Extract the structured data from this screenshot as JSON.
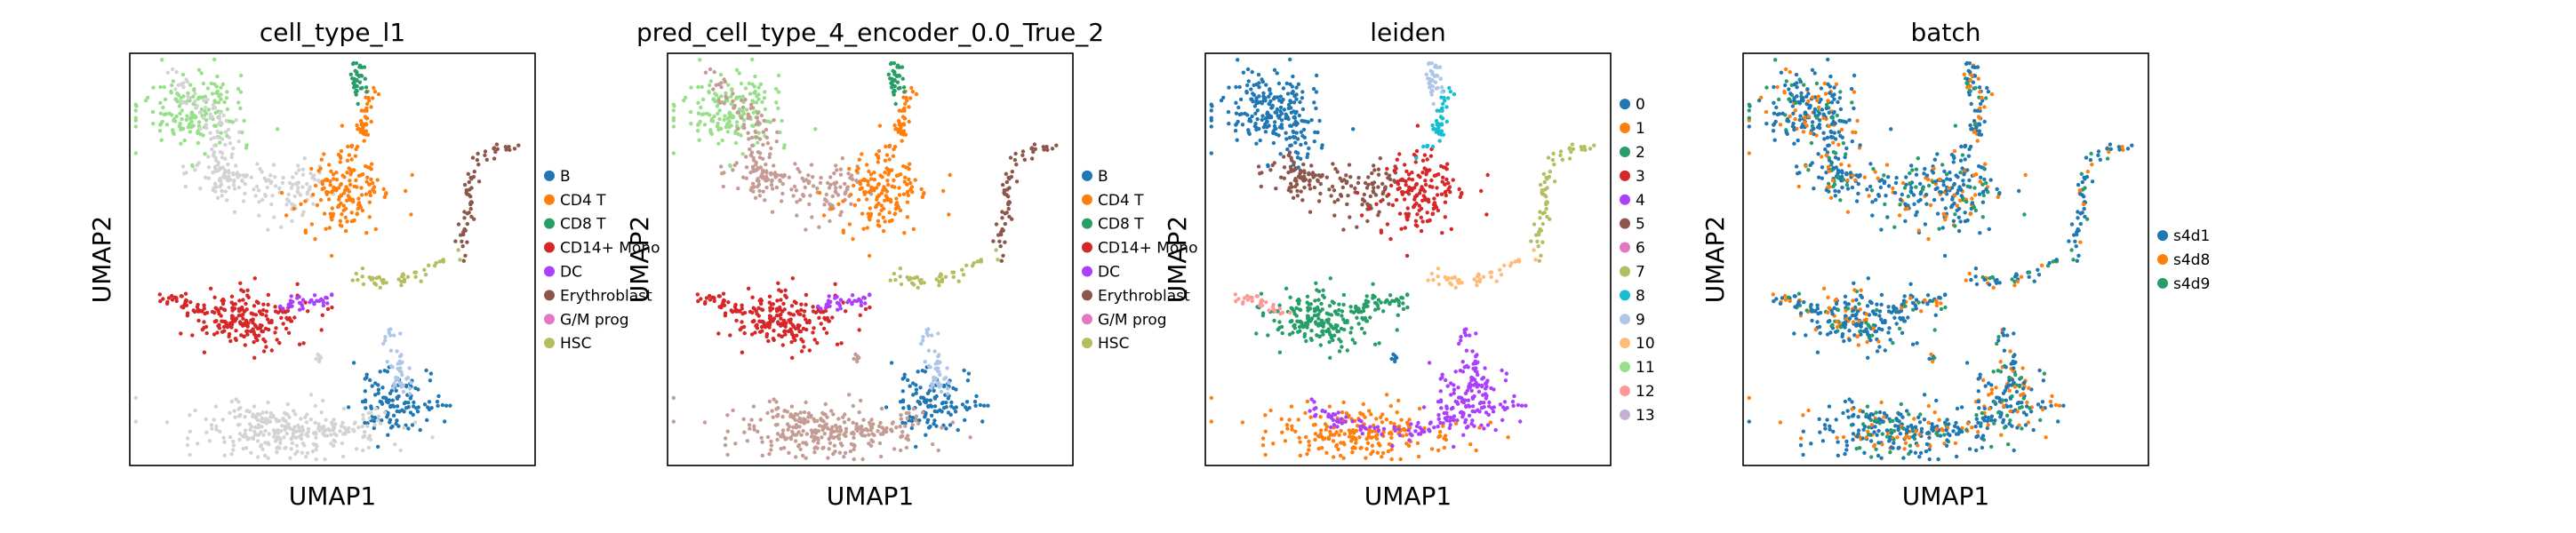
{
  "chart_data": [
    {
      "type": "scatter",
      "title": "cell_type_l1",
      "xlabel": "UMAP1",
      "ylabel": "UMAP2",
      "grid": false,
      "legend_placement": "right",
      "legend": [
        {
          "name": "B",
          "color": "#1f77b4"
        },
        {
          "name": "CD4 T",
          "color": "#ff7f0e"
        },
        {
          "name": "CD8 T",
          "color": "#279e68"
        },
        {
          "name": "CD14+ Mono",
          "color": "#d62728"
        },
        {
          "name": "DC",
          "color": "#aa40fc"
        },
        {
          "name": "Erythroblast",
          "color": "#8c564b"
        },
        {
          "name": "G/M prog",
          "color": "#e377c2"
        },
        {
          "name": "HSC",
          "color": "#b5bd61"
        }
      ]
    },
    {
      "type": "scatter",
      "title": "pred_cell_type_4_encoder_0.0_True_2",
      "xlabel": "UMAP1",
      "ylabel": "UMAP2",
      "grid": false,
      "legend_placement": "right",
      "legend": [
        {
          "name": "B",
          "color": "#1f77b4"
        },
        {
          "name": "CD4 T",
          "color": "#ff7f0e"
        },
        {
          "name": "CD8 T",
          "color": "#279e68"
        },
        {
          "name": "CD14+ Mono",
          "color": "#d62728"
        },
        {
          "name": "DC",
          "color": "#aa40fc"
        },
        {
          "name": "Erythroblast",
          "color": "#8c564b"
        },
        {
          "name": "G/M prog",
          "color": "#e377c2"
        },
        {
          "name": "HSC",
          "color": "#b5bd61"
        }
      ]
    },
    {
      "type": "scatter",
      "title": "leiden",
      "xlabel": "UMAP1",
      "ylabel": "UMAP2",
      "grid": false,
      "legend_placement": "right",
      "legend": [
        {
          "name": "0",
          "color": "#1f77b4"
        },
        {
          "name": "1",
          "color": "#ff7f0e"
        },
        {
          "name": "2",
          "color": "#279e68"
        },
        {
          "name": "3",
          "color": "#d62728"
        },
        {
          "name": "4",
          "color": "#aa40fc"
        },
        {
          "name": "5",
          "color": "#8c564b"
        },
        {
          "name": "6",
          "color": "#e377c2"
        },
        {
          "name": "7",
          "color": "#b5bd61"
        },
        {
          "name": "8",
          "color": "#17becf"
        },
        {
          "name": "9",
          "color": "#aec7e8"
        },
        {
          "name": "10",
          "color": "#ffbb78"
        },
        {
          "name": "11",
          "color": "#98df8a"
        },
        {
          "name": "12",
          "color": "#ff9896"
        },
        {
          "name": "13",
          "color": "#c5b0d5"
        }
      ]
    },
    {
      "type": "scatter",
      "title": "batch",
      "xlabel": "UMAP1",
      "ylabel": "UMAP2",
      "grid": false,
      "legend_placement": "right",
      "legend": [
        {
          "name": "s4d1",
          "color": "#1f77b4"
        },
        {
          "name": "s4d8",
          "color": "#ff7f0e"
        },
        {
          "name": "s4d9",
          "color": "#279e68"
        }
      ]
    }
  ]
}
